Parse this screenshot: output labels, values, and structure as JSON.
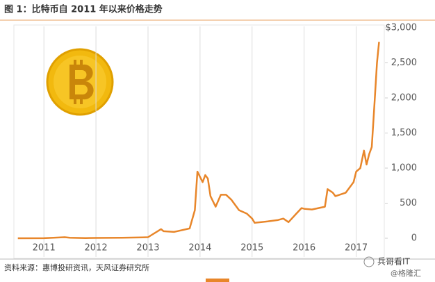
{
  "title": "图 1：比特币自 2011 年以来价格走势",
  "source": "资料来源：惠博投研资讯，天风证券研究所",
  "watermark": {
    "account": "兵哥看IT",
    "site": "@格隆汇"
  },
  "chart_data": {
    "type": "line",
    "color": "#e8862a",
    "grid": true,
    "x": [
      2010.5,
      2011.0,
      2011.4,
      2011.5,
      2011.8,
      2012.0,
      2012.5,
      2012.9,
      2013.0,
      2013.25,
      2013.3,
      2013.5,
      2013.8,
      2013.9,
      2013.95,
      2014.05,
      2014.1,
      2014.15,
      2014.2,
      2014.3,
      2014.4,
      2014.5,
      2014.6,
      2014.75,
      2014.9,
      2015.0,
      2015.05,
      2015.3,
      2015.5,
      2015.6,
      2015.7,
      2015.85,
      2015.95,
      2016.0,
      2016.15,
      2016.4,
      2016.45,
      2016.55,
      2016.6,
      2016.8,
      2016.95,
      2017.0,
      2017.08,
      2017.15,
      2017.2,
      2017.25,
      2017.3,
      2017.35,
      2017.4,
      2017.44
    ],
    "values": [
      0,
      1,
      15,
      8,
      3,
      5,
      7,
      13,
      15,
      130,
      100,
      90,
      140,
      400,
      950,
      800,
      900,
      850,
      600,
      450,
      620,
      620,
      550,
      400,
      350,
      280,
      220,
      240,
      260,
      280,
      230,
      350,
      430,
      420,
      410,
      450,
      700,
      650,
      600,
      650,
      800,
      950,
      1000,
      1250,
      1050,
      1200,
      1300,
      1900,
      2500,
      2800
    ],
    "xlim": [
      2010.45,
      2017.5
    ],
    "xticks": [
      2011,
      2012,
      2013,
      2014,
      2015,
      2016,
      2017
    ],
    "ylim": [
      0,
      3000
    ],
    "yticks": [
      0,
      500,
      {
        "value": 1000,
        "label": "1,000"
      },
      {
        "value": 1500,
        "label": "1,500"
      },
      {
        "value": 2000,
        "label": "2,000"
      },
      {
        "value": 2500,
        "label": "2,500"
      },
      {
        "value": 3000,
        "label": "$3,000"
      }
    ]
  }
}
